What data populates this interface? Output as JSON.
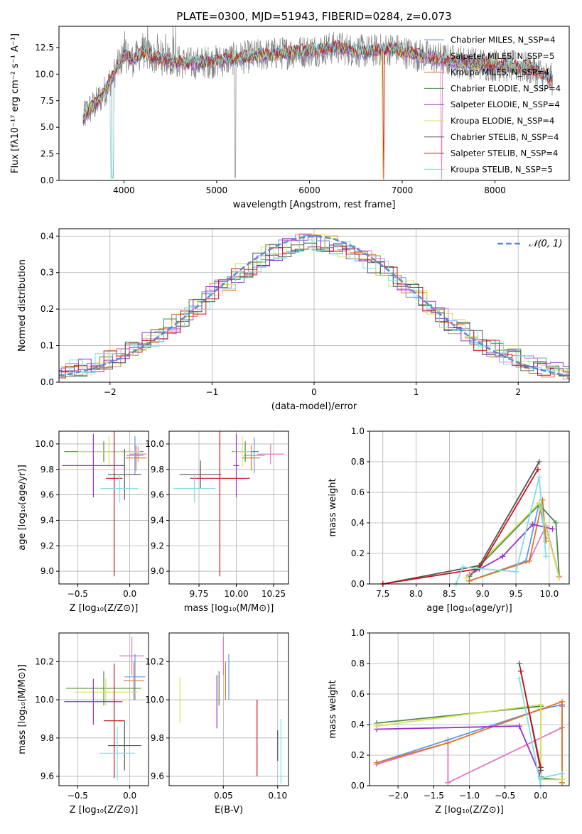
{
  "chart_data": [
    {
      "id": "spectrum",
      "type": "line",
      "title": "PLATE=0300, MJD=51943, FIBERID=0284, z=0.073",
      "xlabel": "wavelength [Angstrom, rest frame]",
      "ylabel": "Flux [fλ10⁻¹⁷ erg cm⁻² s⁻¹ A⁻¹]",
      "xlim": [
        3300,
        8800
      ],
      "ylim": [
        0,
        14.5
      ],
      "xticks": [
        "4000",
        "5000",
        "6000",
        "7000",
        "8000"
      ],
      "yticks": [
        "0.0",
        "2.5",
        "5.0",
        "7.5",
        "10.0",
        "12.5"
      ],
      "grid": false,
      "legend_position": "right",
      "series": [
        {
          "name": "Chabrier MILES, N_SSP=4",
          "color": "#6495ed"
        },
        {
          "name": "Salpeter MILES, N_SSP=5",
          "color": "#e377c2"
        },
        {
          "name": "Kroupa MILES, N_SSP=4",
          "color": "#dd7722"
        },
        {
          "name": "Chabrier ELODIE, N_SSP=4",
          "color": "#4a8a4a"
        },
        {
          "name": "Salpeter ELODIE, N_SSP=4",
          "color": "#9932cc"
        },
        {
          "name": "Kroupa ELODIE, N_SSP=4",
          "color": "#d4e157"
        },
        {
          "name": "Chabrier STELIB, N_SSP=4",
          "color": "#555555"
        },
        {
          "name": "Salpeter STELIB, N_SSP=4",
          "color": "#c8141e"
        },
        {
          "name": "Kroupa STELIB, N_SSP=5",
          "color": "#7fdfe6"
        }
      ],
      "data_series": {
        "name": "data",
        "color": "#808080"
      },
      "continuum": {
        "x": [
          3550,
          3600,
          3700,
          3800,
          3900,
          4000,
          4100,
          4200,
          4300,
          4500,
          4700,
          5000,
          5300,
          5600,
          6000,
          6300,
          6600,
          6900,
          7100,
          7300,
          7500,
          7800,
          8100,
          8400,
          8600
        ],
        "y": [
          5.5,
          6.5,
          7.2,
          8.5,
          10.2,
          11.8,
          11.3,
          12.1,
          11.6,
          11.3,
          11.0,
          11.2,
          11.6,
          11.9,
          12.2,
          12.5,
          12.1,
          12.4,
          11.9,
          11.6,
          11.3,
          11.0,
          10.8,
          10.5,
          9.5
        ]
      }
    },
    {
      "id": "residuals",
      "type": "histogram",
      "xlabel": "(data-model)/error",
      "ylabel": "Normed distribution",
      "xlim": [
        -2.5,
        2.5
      ],
      "ylim": [
        0,
        0.42
      ],
      "xticks": [
        "−2",
        "−1",
        "0",
        "1",
        "2"
      ],
      "yticks": [
        "0.0",
        "0.1",
        "0.2",
        "0.3",
        "0.4"
      ],
      "grid": true,
      "reference_curve": {
        "name": "𝒩(0, 1)",
        "mean": 0,
        "sigma": 1,
        "color": "#5b8bd6"
      },
      "legend_position": "top-right"
    },
    {
      "id": "age_vs_Z",
      "type": "errorbar",
      "xlabel": "Z [log₁₀(Z/Z⊙)]",
      "ylabel": "age  [log₁₀(age/yr)]",
      "xlim": [
        -0.68,
        0.18
      ],
      "ylim": [
        8.9,
        10.1
      ],
      "xticks": [
        "−0.5",
        "0.0"
      ],
      "yticks": [
        "9.0",
        "9.2",
        "9.4",
        "9.6",
        "9.8",
        "10.0"
      ],
      "grid": true,
      "points": [
        {
          "x": 0.08,
          "y": 9.92,
          "xerr": 0.08,
          "yerr": 0.06,
          "color": "#e377c2"
        },
        {
          "x": 0.06,
          "y": 9.89,
          "xerr": 0.1,
          "yerr": 0.1,
          "color": "#dd7722"
        },
        {
          "x": 0.05,
          "y": 9.91,
          "xerr": 0.08,
          "yerr": 0.15,
          "color": "#6495ed"
        },
        {
          "x": -0.25,
          "y": 9.94,
          "xerr": 0.38,
          "yerr": 0.08,
          "color": "#4a8a4a"
        },
        {
          "x": -0.2,
          "y": 9.94,
          "xerr": 0.3,
          "yerr": 0.12,
          "color": "#d4e157"
        },
        {
          "x": -0.35,
          "y": 9.83,
          "xerr": 0.3,
          "yerr": 0.25,
          "color": "#9932cc"
        },
        {
          "x": -0.05,
          "y": 9.76,
          "xerr": 0.16,
          "yerr": 0.2,
          "color": "#555555"
        },
        {
          "x": -0.15,
          "y": 9.73,
          "xerr": 0.08,
          "yerr": 0.77,
          "color": "#c8141e"
        },
        {
          "x": -0.1,
          "y": 9.65,
          "xerr": 0.18,
          "yerr": 0.11,
          "color": "#7fdfe6"
        }
      ]
    },
    {
      "id": "age_vs_mass",
      "type": "errorbar",
      "xlabel": "mass [log₁₀(M/M⊙)]",
      "ylabel": "",
      "xlim": [
        9.55,
        10.35
      ],
      "ylim": [
        8.9,
        10.1
      ],
      "xticks": [
        "9.75",
        "10.00",
        "10.25"
      ],
      "yticks": [
        "9.0",
        "9.2",
        "9.4",
        "9.6",
        "9.8",
        "10.0"
      ],
      "grid": true,
      "points": [
        {
          "x": 10.23,
          "y": 9.92,
          "xerr": 0.09,
          "yerr": 0.08,
          "color": "#e377c2"
        },
        {
          "x": 10.1,
          "y": 9.89,
          "xerr": 0.06,
          "yerr": 0.1,
          "color": "#dd7722"
        },
        {
          "x": 10.12,
          "y": 9.91,
          "xerr": 0.07,
          "yerr": 0.14,
          "color": "#6495ed"
        },
        {
          "x": 10.06,
          "y": 9.94,
          "xerr": 0.09,
          "yerr": 0.08,
          "color": "#4a8a4a"
        },
        {
          "x": 10.04,
          "y": 9.94,
          "xerr": 0.06,
          "yerr": 0.12,
          "color": "#d4e157"
        },
        {
          "x": 10.0,
          "y": 9.83,
          "xerr": 0.02,
          "yerr": 0.25,
          "color": "#9932cc"
        },
        {
          "x": 9.76,
          "y": 9.76,
          "xerr": 0.14,
          "yerr": 0.11,
          "color": "#555555"
        },
        {
          "x": 9.89,
          "y": 9.73,
          "xerr": 0.2,
          "yerr": 0.77,
          "color": "#c8141e"
        },
        {
          "x": 9.72,
          "y": 9.65,
          "xerr": 0.14,
          "yerr": 0.11,
          "color": "#7fdfe6"
        }
      ]
    },
    {
      "id": "massweight_vs_age",
      "type": "line",
      "xlabel": "age  [log₁₀(age/yr)]",
      "ylabel": "mass weight",
      "xlim": [
        7.3,
        10.3
      ],
      "ylim": [
        0,
        1.0
      ],
      "xticks": [
        "7.5",
        "8.0",
        "8.5",
        "9.0",
        "9.5",
        "10.0"
      ],
      "yticks": [
        "0.0",
        "0.2",
        "0.4",
        "0.6",
        "0.8",
        "1.0"
      ],
      "grid": true,
      "series": [
        {
          "color": "#6495ed",
          "x": [
            8.8,
            9.65,
            9.85,
            9.95
          ],
          "y": [
            0.02,
            0.15,
            0.53,
            0.3
          ]
        },
        {
          "color": "#e377c2",
          "x": [
            8.8,
            9.7,
            9.95,
            10.15
          ],
          "y": [
            0.02,
            0.15,
            0.38,
            0.05
          ]
        },
        {
          "color": "#dd7722",
          "x": [
            8.8,
            9.7,
            9.9,
            9.95
          ],
          "y": [
            0.02,
            0.15,
            0.55,
            0.28
          ]
        },
        {
          "color": "#4a8a4a",
          "x": [
            8.8,
            9.85,
            10.1,
            10.15
          ],
          "y": [
            0.05,
            0.52,
            0.4,
            0.04
          ]
        },
        {
          "color": "#9932cc",
          "x": [
            8.8,
            9.3,
            9.75,
            10.05
          ],
          "y": [
            0.06,
            0.18,
            0.39,
            0.36
          ]
        },
        {
          "color": "#d4e157",
          "x": [
            8.75,
            9.85,
            10.15
          ],
          "y": [
            0.04,
            0.53,
            0.04
          ]
        },
        {
          "color": "#555555",
          "x": [
            7.5,
            8.95,
            9.85
          ],
          "y": [
            0.0,
            0.12,
            0.8
          ]
        },
        {
          "color": "#c8141e",
          "x": [
            7.5,
            8.95,
            9.83
          ],
          "y": [
            0.0,
            0.1,
            0.75
          ]
        },
        {
          "color": "#7fdfe6",
          "x": [
            8.6,
            8.7,
            9.5,
            9.85,
            9.95
          ],
          "y": [
            0.0,
            0.11,
            0.08,
            0.7,
            0.18
          ]
        }
      ]
    },
    {
      "id": "mass_vs_Z",
      "type": "errorbar",
      "xlabel": "Z [log₁₀(Z/Z⊙)]",
      "ylabel": "mass [log₁₀(M/M⊙)]",
      "xlim": [
        -0.68,
        0.18
      ],
      "ylim": [
        9.55,
        10.35
      ],
      "xticks": [
        "−0.5",
        "0.0"
      ],
      "yticks": [
        "9.6",
        "9.8",
        "10.0",
        "10.2"
      ],
      "grid": true,
      "points": [
        {
          "x": 0.02,
          "y": 10.23,
          "xerr": 0.12,
          "yerr": 0.1,
          "color": "#e377c2"
        },
        {
          "x": 0.04,
          "y": 10.1,
          "xerr": 0.1,
          "yerr": 0.1,
          "color": "#dd7722"
        },
        {
          "x": 0.05,
          "y": 10.12,
          "xerr": 0.1,
          "yerr": 0.12,
          "color": "#6495ed"
        },
        {
          "x": -0.25,
          "y": 10.06,
          "xerr": 0.36,
          "yerr": 0.09,
          "color": "#4a8a4a"
        },
        {
          "x": -0.23,
          "y": 10.04,
          "xerr": 0.3,
          "yerr": 0.07,
          "color": "#d4e157"
        },
        {
          "x": -0.35,
          "y": 9.99,
          "xerr": 0.28,
          "yerr": 0.12,
          "color": "#9932cc"
        },
        {
          "x": -0.05,
          "y": 9.76,
          "xerr": 0.16,
          "yerr": 0.13,
          "color": "#555555"
        },
        {
          "x": -0.15,
          "y": 9.89,
          "xerr": 0.1,
          "yerr": 0.3,
          "color": "#c8141e"
        },
        {
          "x": -0.12,
          "y": 9.72,
          "xerr": 0.17,
          "yerr": 0.14,
          "color": "#7fdfe6"
        }
      ]
    },
    {
      "id": "mass_vs_ebv",
      "type": "errorbar",
      "xlabel": "E(B-V)",
      "ylabel": "",
      "xlim": [
        0.0,
        0.11
      ],
      "ylim": [
        9.55,
        10.35
      ],
      "xticks": [
        "0.05",
        "0.10"
      ],
      "yticks": [
        "9.6",
        "9.8",
        "10.0",
        "10.2"
      ],
      "grid": true,
      "points": [
        {
          "x": 0.05,
          "y": 10.23,
          "xerr": 0,
          "yerr": 0.1,
          "color": "#e377c2"
        },
        {
          "x": 0.052,
          "y": 10.1,
          "xerr": 0,
          "yerr": 0.1,
          "color": "#dd7722"
        },
        {
          "x": 0.055,
          "y": 10.12,
          "xerr": 0,
          "yerr": 0.12,
          "color": "#6495ed"
        },
        {
          "x": 0.046,
          "y": 10.06,
          "xerr": 0,
          "yerr": 0.09,
          "color": "#4a8a4a"
        },
        {
          "x": 0.01,
          "y": 10.0,
          "xerr": 0,
          "yerr": 0.12,
          "color": "#d4e157"
        },
        {
          "x": 0.044,
          "y": 9.99,
          "xerr": 0,
          "yerr": 0.14,
          "color": "#9932cc"
        },
        {
          "x": 0.1,
          "y": 9.76,
          "xerr": 0,
          "yerr": 0.08,
          "color": "#555555"
        },
        {
          "x": 0.081,
          "y": 9.8,
          "xerr": 0,
          "yerr": 0.2,
          "color": "#c8141e"
        },
        {
          "x": 0.103,
          "y": 9.73,
          "xerr": 0,
          "yerr": 0.17,
          "color": "#7fdfe6"
        }
      ]
    },
    {
      "id": "massweight_vs_Z",
      "type": "line",
      "xlabel": "Z [log₁₀(Z/Z⊙)]",
      "ylabel": "mass weight",
      "xlim": [
        -2.4,
        0.4
      ],
      "ylim": [
        0,
        1.0
      ],
      "xticks": [
        "−2.0",
        "−1.5",
        "−1.0",
        "−0.5",
        "0.0"
      ],
      "yticks": [
        "0.0",
        "0.2",
        "0.4",
        "0.6",
        "0.8",
        "1.0"
      ],
      "grid": true,
      "series": [
        {
          "color": "#6495ed",
          "x": [
            -2.3,
            -1.3,
            0.0,
            0.3,
            0.3
          ],
          "y": [
            0.15,
            0.3,
            0.5,
            0.53,
            0.02
          ]
        },
        {
          "color": "#e377c2",
          "x": [
            -2.3,
            -1.3,
            -1.3,
            0.3,
            0.3
          ],
          "y": [
            0.14,
            0.28,
            0.02,
            0.38,
            0.52
          ]
        },
        {
          "color": "#dd7722",
          "x": [
            -2.3,
            -1.3,
            0.0,
            0.3,
            0.3
          ],
          "y": [
            0.15,
            0.28,
            0.5,
            0.55,
            0.02
          ]
        },
        {
          "color": "#4a8a4a",
          "x": [
            -2.3,
            0.0,
            0.0,
            0.3
          ],
          "y": [
            0.41,
            0.52,
            0.05,
            0.04
          ]
        },
        {
          "color": "#9932cc",
          "x": [
            -2.3,
            -0.3,
            0.0,
            0.0
          ],
          "y": [
            0.37,
            0.39,
            0.06,
            0.12
          ]
        },
        {
          "color": "#d4e157",
          "x": [
            -2.3,
            0.0,
            0.0,
            0.3
          ],
          "y": [
            0.39,
            0.53,
            0.04,
            0.04
          ]
        },
        {
          "color": "#555555",
          "x": [
            -0.3,
            0.0
          ],
          "y": [
            0.8,
            0.1
          ]
        },
        {
          "color": "#c8141e",
          "x": [
            -0.28,
            0.0
          ],
          "y": [
            0.75,
            0.12
          ]
        },
        {
          "color": "#7fdfe6",
          "x": [
            -0.3,
            0.0,
            0.0,
            0.3
          ],
          "y": [
            0.7,
            0.0,
            0.05,
            0.08
          ]
        }
      ]
    }
  ]
}
